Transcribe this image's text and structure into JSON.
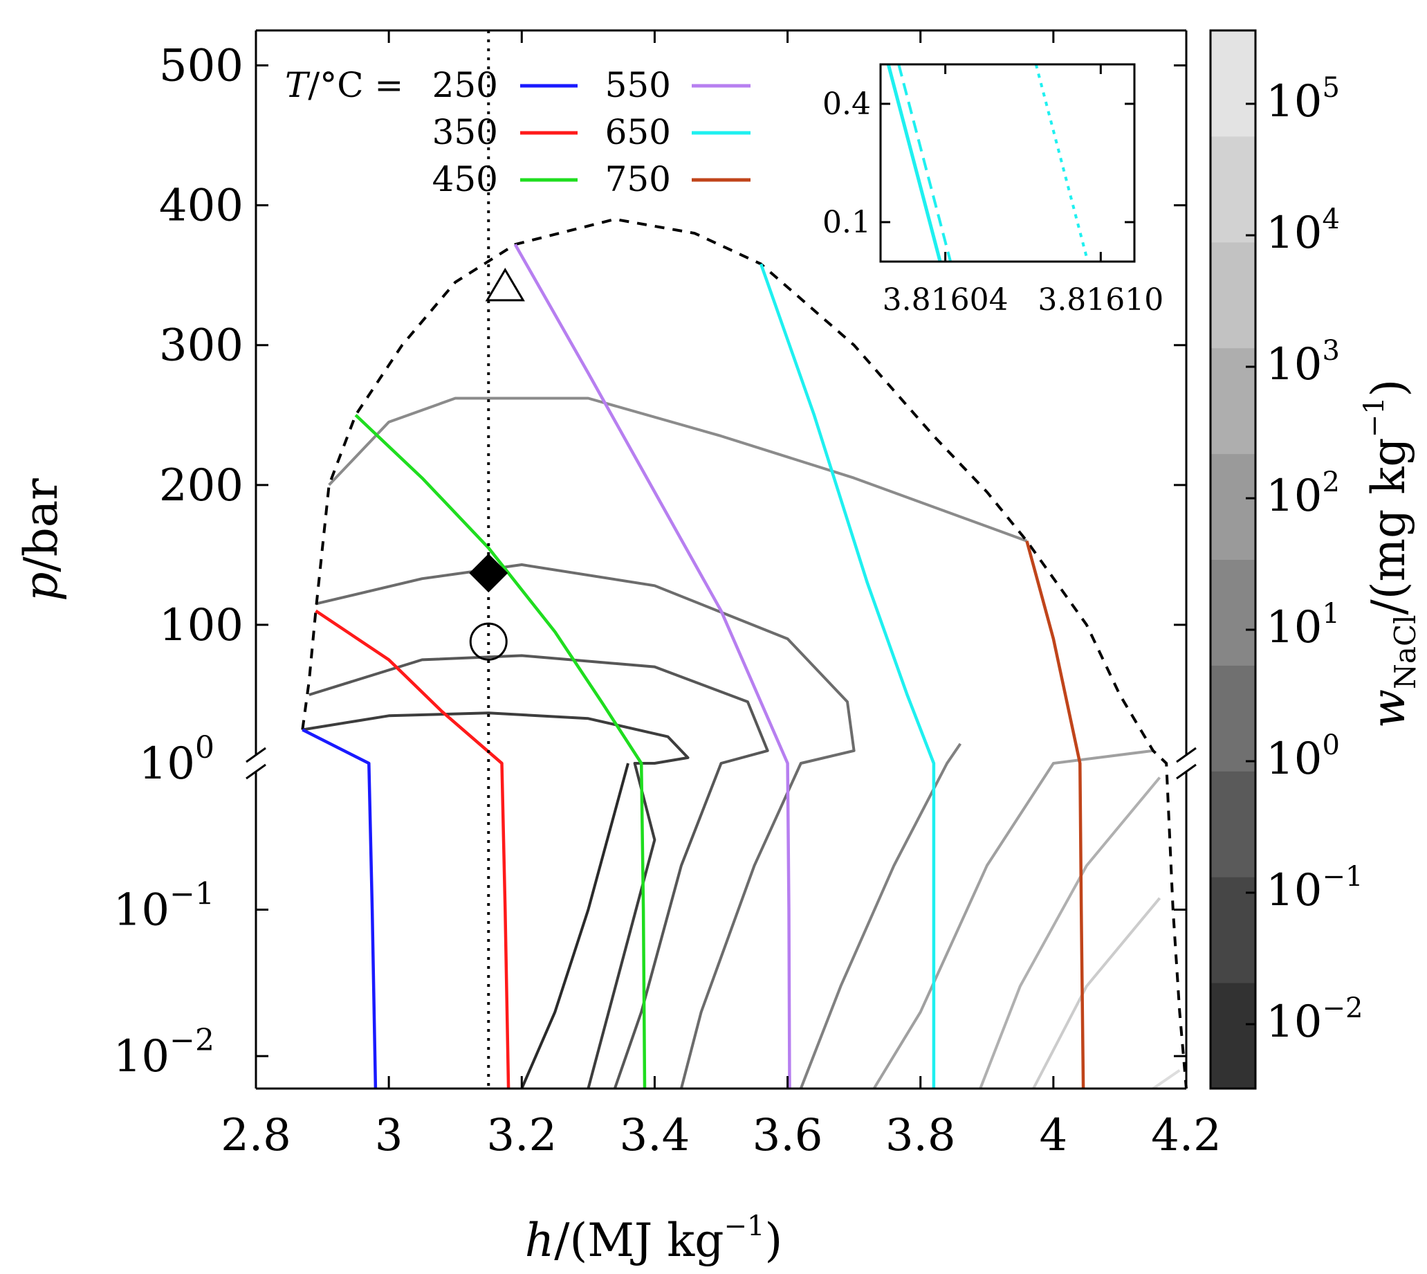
{
  "chart_data": {
    "type": "line",
    "xlabel_var": "h",
    "xlabel_unit": "/(MJ kg",
    "xlabel_exp": "−1",
    "xlabel_close": ")",
    "ylabel_var": "p",
    "ylabel_unit": "/bar",
    "xlim": [
      2.8,
      4.2
    ],
    "xticks": [
      {
        "v": 2.8,
        "label": "2.8"
      },
      {
        "v": 3.0,
        "label": "3"
      },
      {
        "v": 3.2,
        "label": "3.2"
      },
      {
        "v": 3.4,
        "label": "3.4"
      },
      {
        "v": 3.6,
        "label": "3.6"
      },
      {
        "v": 3.8,
        "label": "3.8"
      },
      {
        "v": 4.0,
        "label": "4"
      },
      {
        "v": 4.2,
        "label": "4.2"
      }
    ],
    "y_upper_linear": {
      "range": [
        1,
        525
      ],
      "ticks": [
        {
          "v": 100,
          "label": "100"
        },
        {
          "v": 200,
          "label": "200"
        },
        {
          "v": 300,
          "label": "300"
        },
        {
          "v": 400,
          "label": "400"
        },
        {
          "v": 500,
          "label": "500"
        }
      ]
    },
    "y_lower_log": {
      "range": [
        0.006,
        1
      ],
      "ticks": [
        {
          "v": 1,
          "base": "10",
          "exp": "0"
        },
        {
          "v": 0.1,
          "base": "10",
          "exp": "−1"
        },
        {
          "v": 0.01,
          "base": "10",
          "exp": "−2"
        }
      ]
    },
    "legend": {
      "prefix_var": "T",
      "prefix_unit": "/°C =",
      "entries": [
        {
          "name": "250",
          "color": "#1a1aff"
        },
        {
          "name": "350",
          "color": "#ff1a1a"
        },
        {
          "name": "450",
          "color": "#1fdd1f"
        },
        {
          "name": "550",
          "color": "#b77ff0"
        },
        {
          "name": "650",
          "color": "#1ff0f0"
        },
        {
          "name": "750",
          "color": "#c0441a"
        }
      ]
    },
    "isotherms": [
      {
        "name": "250",
        "color": "#1a1aff",
        "points": [
          [
            2.87,
            25
          ],
          [
            2.97,
            1
          ],
          [
            2.975,
            0.1
          ],
          [
            2.98,
            0.006
          ]
        ]
      },
      {
        "name": "350",
        "color": "#ff1a1a",
        "points": [
          [
            2.89,
            110
          ],
          [
            3.0,
            75
          ],
          [
            3.08,
            38
          ],
          [
            3.17,
            1
          ],
          [
            3.175,
            0.1
          ],
          [
            3.18,
            0.006
          ]
        ]
      },
      {
        "name": "450",
        "color": "#1fdd1f",
        "points": [
          [
            2.95,
            250
          ],
          [
            3.05,
            205
          ],
          [
            3.15,
            155
          ],
          [
            3.25,
            95
          ],
          [
            3.32,
            45
          ],
          [
            3.38,
            1
          ],
          [
            3.383,
            0.1
          ],
          [
            3.385,
            0.006
          ]
        ]
      },
      {
        "name": "550",
        "color": "#b77ff0",
        "points": [
          [
            3.19,
            372
          ],
          [
            3.3,
            280
          ],
          [
            3.4,
            195
          ],
          [
            3.5,
            110
          ],
          [
            3.6,
            1
          ],
          [
            3.602,
            0.1
          ],
          [
            3.603,
            0.006
          ]
        ]
      },
      {
        "name": "650",
        "color": "#1ff0f0",
        "points": [
          [
            3.56,
            358
          ],
          [
            3.64,
            250
          ],
          [
            3.72,
            130
          ],
          [
            3.78,
            50
          ],
          [
            3.82,
            1
          ],
          [
            3.82,
            0.1
          ],
          [
            3.82,
            0.006
          ]
        ]
      },
      {
        "name": "750",
        "color": "#c0441a",
        "points": [
          [
            3.96,
            160
          ],
          [
            4.0,
            90
          ],
          [
            4.04,
            1
          ],
          [
            4.042,
            0.1
          ],
          [
            4.045,
            0.006
          ]
        ]
      }
    ],
    "contours": [
      {
        "level": "1e-2",
        "color": "#2b2b2b",
        "points": [
          [
            3.2,
            0.006
          ],
          [
            3.25,
            0.02
          ],
          [
            3.3,
            0.1
          ],
          [
            3.36,
            1
          ]
        ]
      },
      {
        "level": "1e-1",
        "color": "#3d3d3d",
        "points": [
          [
            2.87,
            25
          ],
          [
            3.0,
            35
          ],
          [
            3.15,
            37
          ],
          [
            3.3,
            33
          ],
          [
            3.42,
            20
          ],
          [
            3.45,
            5
          ],
          [
            3.4,
            1
          ],
          [
            3.37,
            1
          ],
          [
            3.4,
            0.3
          ],
          [
            3.3,
            0.006
          ]
        ]
      },
      {
        "level": "1e0",
        "color": "#575757",
        "points": [
          [
            2.88,
            50
          ],
          [
            3.05,
            75
          ],
          [
            3.2,
            78
          ],
          [
            3.4,
            70
          ],
          [
            3.54,
            45
          ],
          [
            3.57,
            10
          ],
          [
            3.5,
            1
          ],
          [
            3.44,
            0.2
          ],
          [
            3.38,
            0.02
          ],
          [
            3.34,
            0.006
          ]
        ]
      },
      {
        "level": "1e1",
        "color": "#6c6c6c",
        "points": [
          [
            2.89,
            115
          ],
          [
            3.05,
            133
          ],
          [
            3.2,
            143
          ],
          [
            3.4,
            128
          ],
          [
            3.6,
            90
          ],
          [
            3.69,
            45
          ],
          [
            3.7,
            10
          ],
          [
            3.62,
            1
          ],
          [
            3.55,
            0.2
          ],
          [
            3.47,
            0.02
          ],
          [
            3.44,
            0.006
          ]
        ]
      },
      {
        "level": "1e2",
        "color": "#818181",
        "points": [
          [
            3.86,
            15
          ],
          [
            3.84,
            1
          ],
          [
            3.76,
            0.2
          ],
          [
            3.68,
            0.03
          ],
          [
            3.62,
            0.006
          ]
        ]
      },
      {
        "level": "1e3",
        "color": "#8b8b8b",
        "points": [
          [
            2.91,
            200
          ],
          [
            3.0,
            245
          ],
          [
            3.1,
            262
          ],
          [
            3.3,
            262
          ],
          [
            3.5,
            235
          ],
          [
            3.7,
            205
          ],
          [
            3.96,
            160
          ]
        ]
      },
      {
        "level": "1e4",
        "color": "#a0a0a0",
        "points": [
          [
            4.15,
            10
          ],
          [
            4.0,
            1
          ],
          [
            3.9,
            0.2
          ],
          [
            3.8,
            0.02
          ],
          [
            3.73,
            0.006
          ]
        ]
      },
      {
        "level": "1e5",
        "color": "#b0b0b0",
        "points": [
          [
            4.16,
            0.8
          ],
          [
            4.05,
            0.2
          ],
          [
            3.95,
            0.03
          ],
          [
            3.89,
            0.006
          ]
        ]
      },
      {
        "level": "1e6",
        "color": "#cccccc",
        "points": [
          [
            4.16,
            0.12
          ],
          [
            4.05,
            0.03
          ],
          [
            3.97,
            0.006
          ]
        ]
      },
      {
        "level": "1e7",
        "color": "#dddddd",
        "points": [
          [
            4.19,
            0.008
          ],
          [
            4.15,
            0.006
          ]
        ]
      }
    ],
    "dome": {
      "color": "#000000",
      "points": [
        [
          2.87,
          25
        ],
        [
          2.88,
          60
        ],
        [
          2.89,
          110
        ],
        [
          2.91,
          200
        ],
        [
          2.95,
          250
        ],
        [
          3.02,
          300
        ],
        [
          3.1,
          345
        ],
        [
          3.19,
          372
        ],
        [
          3.34,
          390
        ],
        [
          3.46,
          380
        ],
        [
          3.56,
          358
        ],
        [
          3.7,
          300
        ],
        [
          3.82,
          235
        ],
        [
          3.9,
          195
        ],
        [
          3.96,
          160
        ],
        [
          4.05,
          100
        ],
        [
          4.1,
          50
        ],
        [
          4.15,
          10
        ],
        [
          4.17,
          1
        ],
        [
          4.18,
          0.1
        ],
        [
          4.19,
          0.02
        ],
        [
          4.2,
          0.006
        ]
      ]
    },
    "isenthalp_h": 3.15,
    "markers": [
      {
        "shape": "triangle",
        "h": 3.175,
        "p": 342
      },
      {
        "shape": "diamond",
        "h": 3.15,
        "p": 137
      },
      {
        "shape": "circle",
        "h": 3.15,
        "p": 88
      }
    ],
    "colorbar": {
      "var": "w",
      "sub": "NaCl",
      "unit": "/(mg kg",
      "exp": "−1",
      "close": ")",
      "bands": [
        "#323232",
        "#464646",
        "#5a5a5a",
        "#707070",
        "#868686",
        "#9a9a9a",
        "#aeaeae",
        "#c2c2c2",
        "#d2d2d2",
        "#e3e3e3"
      ],
      "ticks": [
        {
          "base": "10",
          "exp": "−2"
        },
        {
          "base": "10",
          "exp": "−1"
        },
        {
          "base": "10",
          "exp": "0"
        },
        {
          "base": "10",
          "exp": "1"
        },
        {
          "base": "10",
          "exp": "2"
        },
        {
          "base": "10",
          "exp": "3"
        },
        {
          "base": "10",
          "exp": "4"
        },
        {
          "base": "10",
          "exp": "5"
        }
      ]
    },
    "inset": {
      "xlim": [
        3.816015,
        3.816113
      ],
      "ylim": [
        0.0,
        0.5
      ],
      "xticks": [
        {
          "v": 3.81604,
          "label": "3.81604"
        },
        {
          "v": 3.8161,
          "label": "3.81610"
        }
      ],
      "yticks": [
        {
          "v": 0.1,
          "label": "0.1"
        },
        {
          "v": 0.4,
          "label": "0.4"
        }
      ],
      "lines": [
        {
          "style": "solid",
          "color": "#1ff0f0",
          "points": [
            [
              3.816018,
              0.5
            ],
            [
              3.816038,
              0.0
            ]
          ]
        },
        {
          "style": "dashed",
          "color": "#1ff0f0",
          "points": [
            [
              3.816022,
              0.5
            ],
            [
              3.816042,
              0.0
            ]
          ]
        },
        {
          "style": "dotted",
          "color": "#1ff0f0",
          "points": [
            [
              3.816075,
              0.5
            ],
            [
              3.816095,
              0.0
            ]
          ]
        }
      ]
    }
  }
}
